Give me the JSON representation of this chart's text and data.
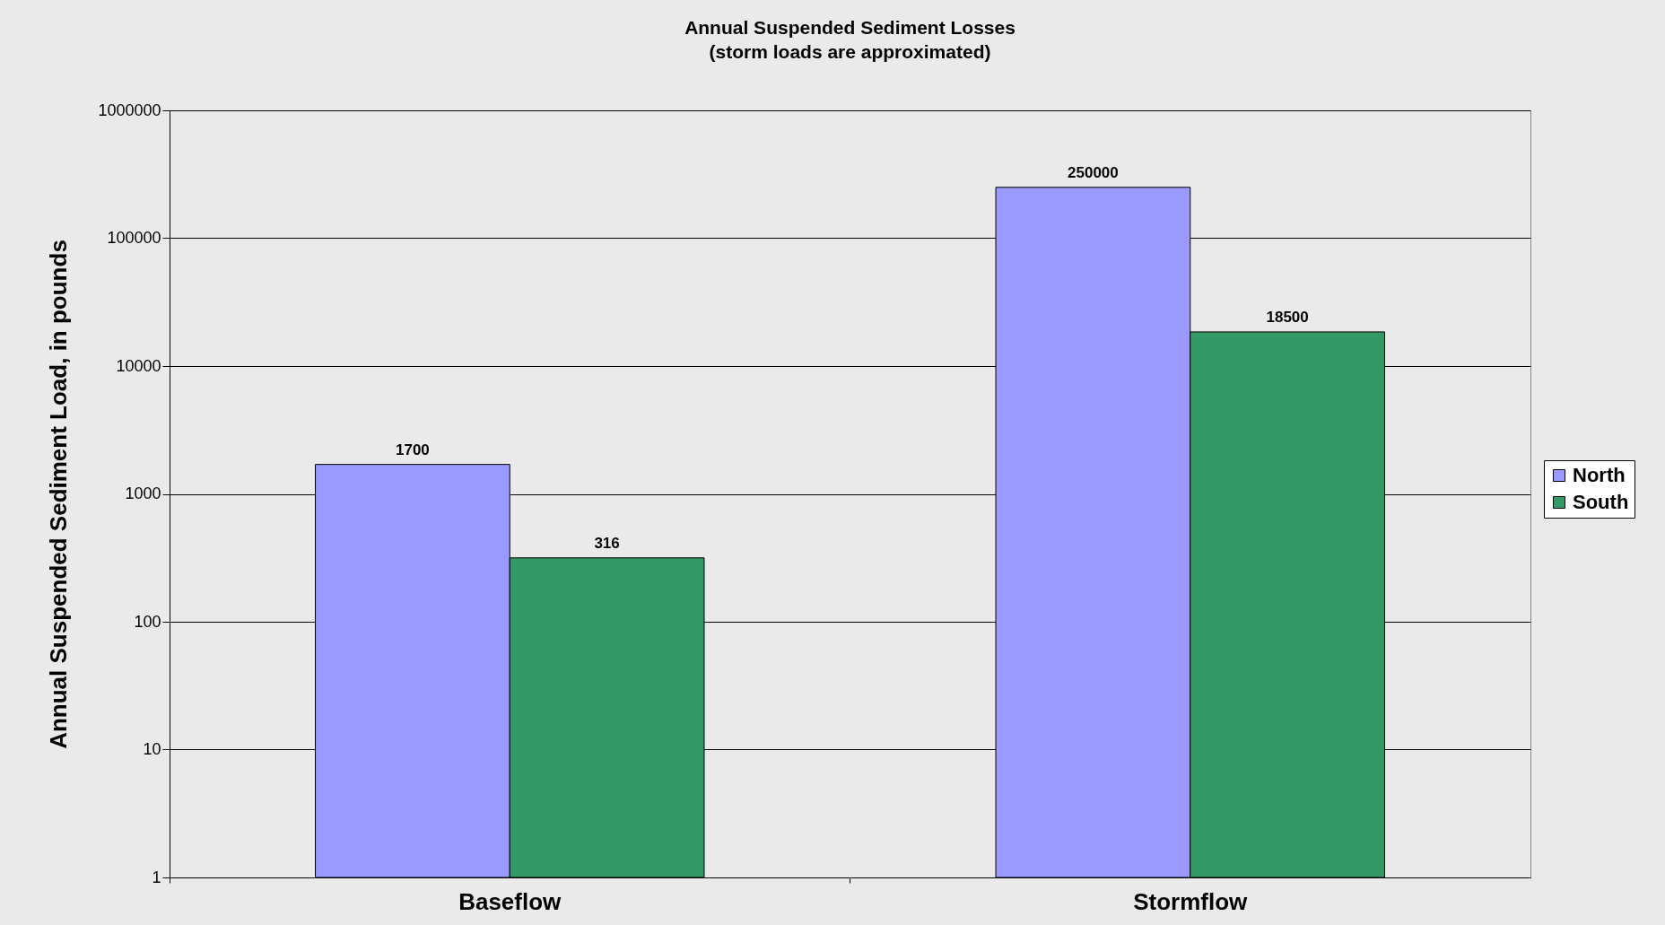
{
  "chart_data": {
    "type": "bar",
    "title": "Annual Suspended Sediment Losses",
    "subtitle": "(storm loads are approximated)",
    "ylabel": "Annual Suspended Sediment Load, in pounds",
    "categories": [
      "Baseflow",
      "Stormflow"
    ],
    "series": [
      {
        "name": "North",
        "color": "#9999ff",
        "values": [
          1700,
          250000
        ]
      },
      {
        "name": "South",
        "color": "#339966",
        "values": [
          316,
          18500
        ]
      }
    ],
    "log": true,
    "ylim": [
      1,
      1000000
    ],
    "yticks": [
      1,
      10,
      100,
      1000,
      10000,
      100000,
      1000000
    ],
    "grid": "y",
    "legend": "right",
    "data_labels": true
  }
}
